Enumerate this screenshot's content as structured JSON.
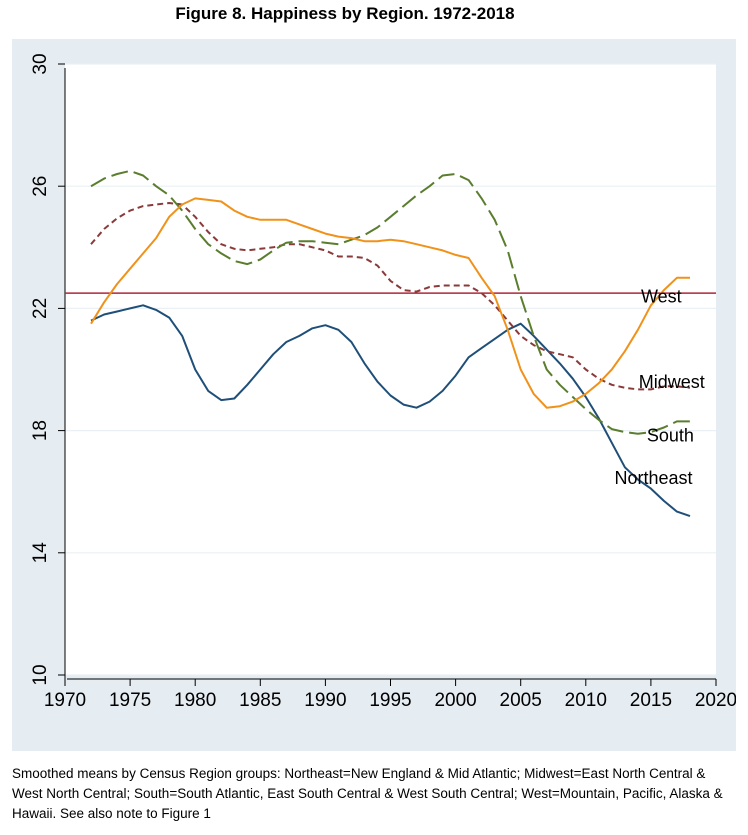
{
  "figure_title": "Figure 8.  Happiness by Region. 1972-2018",
  "note": "Smoothed means by Census Region groups: Northeast=New England & Mid Atlantic; Midwest=East North Central & West North Central; South=South Atlantic, East South Central & West South Central; West=Mountain, Pacific, Alaska & Hawaii.  See also note to Figure 1",
  "colors": {
    "panel_background": "#e5ecf2",
    "plot_background": "#ffffff",
    "reference_line": "#b0263b"
  },
  "chart_data": {
    "type": "line",
    "title": "Figure 8.  Happiness by Region. 1972-2018",
    "xlabel": "",
    "ylabel": "",
    "xlim": [
      1970,
      2020
    ],
    "ylim": [
      10,
      30
    ],
    "x_ticks": [
      1970,
      1975,
      1980,
      1985,
      1990,
      1995,
      2000,
      2005,
      2010,
      2015,
      2020
    ],
    "y_ticks": [
      10,
      14,
      18,
      22,
      26,
      30
    ],
    "grid": true,
    "legend": "none",
    "reference_line": {
      "y": 22.5,
      "color": "#b0263b"
    },
    "series": [
      {
        "name": "Northeast",
        "color": "#1f4f79",
        "dash": "solid",
        "label": "Northeast",
        "label_at": [
          2015.2,
          16.4
        ],
        "points": [
          [
            1972,
            21.6
          ],
          [
            1973,
            21.8
          ],
          [
            1974,
            21.9
          ],
          [
            1975,
            22.0
          ],
          [
            1976,
            22.1
          ],
          [
            1977,
            21.95
          ],
          [
            1978,
            21.7
          ],
          [
            1979,
            21.1
          ],
          [
            1980,
            20.0
          ],
          [
            1981,
            19.3
          ],
          [
            1982,
            19.0
          ],
          [
            1983,
            19.05
          ],
          [
            1984,
            19.5
          ],
          [
            1985,
            20.0
          ],
          [
            1986,
            20.5
          ],
          [
            1987,
            20.9
          ],
          [
            1988,
            21.1
          ],
          [
            1989,
            21.35
          ],
          [
            1990,
            21.45
          ],
          [
            1991,
            21.3
          ],
          [
            1992,
            20.9
          ],
          [
            1993,
            20.2
          ],
          [
            1994,
            19.6
          ],
          [
            1995,
            19.15
          ],
          [
            1996,
            18.85
          ],
          [
            1997,
            18.75
          ],
          [
            1998,
            18.95
          ],
          [
            1999,
            19.3
          ],
          [
            2000,
            19.8
          ],
          [
            2001,
            20.4
          ],
          [
            2002,
            20.7
          ],
          [
            2003,
            21.0
          ],
          [
            2004,
            21.3
          ],
          [
            2005,
            21.5
          ],
          [
            2006,
            21.1
          ],
          [
            2007,
            20.65
          ],
          [
            2008,
            20.2
          ],
          [
            2009,
            19.7
          ],
          [
            2010,
            19.1
          ],
          [
            2011,
            18.4
          ],
          [
            2012,
            17.6
          ],
          [
            2013,
            16.8
          ],
          [
            2014,
            16.4
          ],
          [
            2015,
            16.1
          ],
          [
            2016,
            15.7
          ],
          [
            2017,
            15.35
          ],
          [
            2018,
            15.2
          ]
        ]
      },
      {
        "name": "Midwest",
        "color": "#8b3a3a",
        "dash": "short",
        "label": "Midwest",
        "label_at": [
          2016.6,
          19.55
        ],
        "points": [
          [
            1972,
            24.1
          ],
          [
            1973,
            24.6
          ],
          [
            1974,
            24.95
          ],
          [
            1975,
            25.2
          ],
          [
            1976,
            25.35
          ],
          [
            1977,
            25.4
          ],
          [
            1978,
            25.45
          ],
          [
            1979,
            25.4
          ],
          [
            1980,
            25.0
          ],
          [
            1981,
            24.5
          ],
          [
            1982,
            24.1
          ],
          [
            1983,
            23.95
          ],
          [
            1984,
            23.9
          ],
          [
            1985,
            23.95
          ],
          [
            1986,
            24.0
          ],
          [
            1987,
            24.1
          ],
          [
            1988,
            24.1
          ],
          [
            1989,
            24.0
          ],
          [
            1990,
            23.9
          ],
          [
            1991,
            23.7
          ],
          [
            1992,
            23.7
          ],
          [
            1993,
            23.65
          ],
          [
            1994,
            23.4
          ],
          [
            1995,
            22.9
          ],
          [
            1996,
            22.6
          ],
          [
            1997,
            22.55
          ],
          [
            1998,
            22.7
          ],
          [
            1999,
            22.75
          ],
          [
            2000,
            22.75
          ],
          [
            2001,
            22.75
          ],
          [
            2002,
            22.5
          ],
          [
            2003,
            22.1
          ],
          [
            2004,
            21.6
          ],
          [
            2005,
            21.1
          ],
          [
            2006,
            20.8
          ],
          [
            2007,
            20.6
          ],
          [
            2008,
            20.5
          ],
          [
            2009,
            20.4
          ],
          [
            2010,
            20.0
          ],
          [
            2011,
            19.7
          ],
          [
            2012,
            19.5
          ],
          [
            2013,
            19.4
          ],
          [
            2014,
            19.35
          ],
          [
            2015,
            19.35
          ],
          [
            2016,
            19.45
          ],
          [
            2017,
            19.45
          ],
          [
            2018,
            19.4
          ]
        ]
      },
      {
        "name": "South",
        "color": "#5a7d2e",
        "dash": "long",
        "label": "South",
        "label_at": [
          2016.5,
          17.8
        ],
        "points": [
          [
            1972,
            26.0
          ],
          [
            1973,
            26.25
          ],
          [
            1974,
            26.4
          ],
          [
            1975,
            26.5
          ],
          [
            1976,
            26.35
          ],
          [
            1977,
            26.0
          ],
          [
            1978,
            25.7
          ],
          [
            1979,
            25.2
          ],
          [
            1980,
            24.6
          ],
          [
            1981,
            24.1
          ],
          [
            1982,
            23.8
          ],
          [
            1983,
            23.55
          ],
          [
            1984,
            23.45
          ],
          [
            1985,
            23.6
          ],
          [
            1986,
            23.9
          ],
          [
            1987,
            24.15
          ],
          [
            1988,
            24.2
          ],
          [
            1989,
            24.2
          ],
          [
            1990,
            24.15
          ],
          [
            1991,
            24.1
          ],
          [
            1992,
            24.25
          ],
          [
            1993,
            24.4
          ],
          [
            1994,
            24.65
          ],
          [
            1995,
            25.0
          ],
          [
            1996,
            25.35
          ],
          [
            1997,
            25.7
          ],
          [
            1998,
            26.0
          ],
          [
            1999,
            26.35
          ],
          [
            2000,
            26.4
          ],
          [
            2001,
            26.2
          ],
          [
            2002,
            25.6
          ],
          [
            2003,
            24.9
          ],
          [
            2004,
            23.9
          ],
          [
            2005,
            22.4
          ],
          [
            2006,
            21.1
          ],
          [
            2007,
            20.0
          ],
          [
            2008,
            19.5
          ],
          [
            2009,
            19.1
          ],
          [
            2010,
            18.7
          ],
          [
            2011,
            18.35
          ],
          [
            2012,
            18.05
          ],
          [
            2013,
            17.95
          ],
          [
            2014,
            17.9
          ],
          [
            2015,
            17.95
          ],
          [
            2016,
            18.1
          ],
          [
            2017,
            18.3
          ],
          [
            2018,
            18.3
          ]
        ]
      },
      {
        "name": "West",
        "color": "#f0921a",
        "dash": "solid",
        "label": "West",
        "label_at": [
          2015.8,
          22.35
        ],
        "points": [
          [
            1972,
            21.5
          ],
          [
            1973,
            22.2
          ],
          [
            1974,
            22.8
          ],
          [
            1975,
            23.3
          ],
          [
            1976,
            23.8
          ],
          [
            1977,
            24.3
          ],
          [
            1978,
            25.0
          ],
          [
            1979,
            25.4
          ],
          [
            1980,
            25.6
          ],
          [
            1981,
            25.55
          ],
          [
            1982,
            25.5
          ],
          [
            1983,
            25.2
          ],
          [
            1984,
            25.0
          ],
          [
            1985,
            24.9
          ],
          [
            1986,
            24.9
          ],
          [
            1987,
            24.9
          ],
          [
            1988,
            24.75
          ],
          [
            1989,
            24.6
          ],
          [
            1990,
            24.45
          ],
          [
            1991,
            24.35
          ],
          [
            1992,
            24.3
          ],
          [
            1993,
            24.2
          ],
          [
            1994,
            24.2
          ],
          [
            1995,
            24.25
          ],
          [
            1996,
            24.2
          ],
          [
            1997,
            24.1
          ],
          [
            1998,
            24.0
          ],
          [
            1999,
            23.9
          ],
          [
            2000,
            23.75
          ],
          [
            2001,
            23.65
          ],
          [
            2002,
            23.0
          ],
          [
            2003,
            22.4
          ],
          [
            2004,
            21.3
          ],
          [
            2005,
            20.0
          ],
          [
            2006,
            19.2
          ],
          [
            2007,
            18.75
          ],
          [
            2008,
            18.8
          ],
          [
            2009,
            18.95
          ],
          [
            2010,
            19.2
          ],
          [
            2011,
            19.55
          ],
          [
            2012,
            20.0
          ],
          [
            2013,
            20.6
          ],
          [
            2014,
            21.3
          ],
          [
            2015,
            22.1
          ],
          [
            2016,
            22.6
          ],
          [
            2017,
            23.0
          ],
          [
            2018,
            23.0
          ]
        ]
      }
    ]
  }
}
